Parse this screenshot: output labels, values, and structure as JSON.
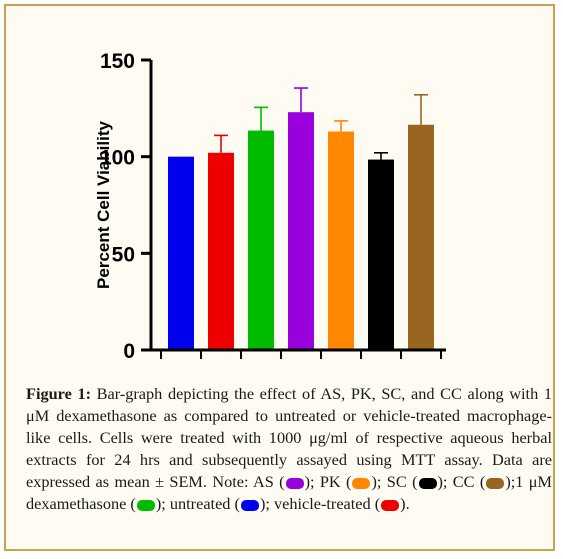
{
  "chart_data": {
    "type": "bar",
    "ylabel": "Percent Cell Viability",
    "ylim": [
      0,
      150
    ],
    "yticks": [
      "0",
      "50",
      "100",
      "150"
    ],
    "grid": false,
    "legend": "none",
    "series": [
      {
        "values": [
          100,
          102,
          113.5,
          123,
          113,
          98.5,
          116.5
        ],
        "errors": [
          0,
          9,
          12,
          12.5,
          5.5,
          3.5,
          15.5
        ],
        "colors": [
          "#0000ee",
          "#ee0000",
          "#00bb00",
          "#9900dd",
          "#ff8800",
          "#000000",
          "#996622"
        ]
      }
    ]
  },
  "caption": {
    "figure_label": "Figure 1:",
    "part1": " Bar-graph depicting the effect of AS, PK, SC, and CC along with 1 μM dexamethasone as compared to untreated or vehicle-treated macrophage-like cells. Cells were treated with 1000 μg/ml of respective aqueous herbal extracts for 24 hrs and subsequently assayed using MTT assay. Data are expressed as mean ± SEM. Note: AS (",
    "part2": "); PK (",
    "part3": "); SC (",
    "part4": "); CC (",
    "part5": ");1 μM dexamethasone (",
    "part6": "); untreated (",
    "part7": "); vehicle-treated (",
    "part8": ")."
  },
  "colors": {
    "border": "#c9a349",
    "AS": "#9900dd",
    "PK": "#ff8800",
    "SC": "#000000",
    "CC": "#996622",
    "dexamethasone": "#00bb00",
    "untreated": "#0000ee",
    "vehicle": "#ee0000"
  }
}
